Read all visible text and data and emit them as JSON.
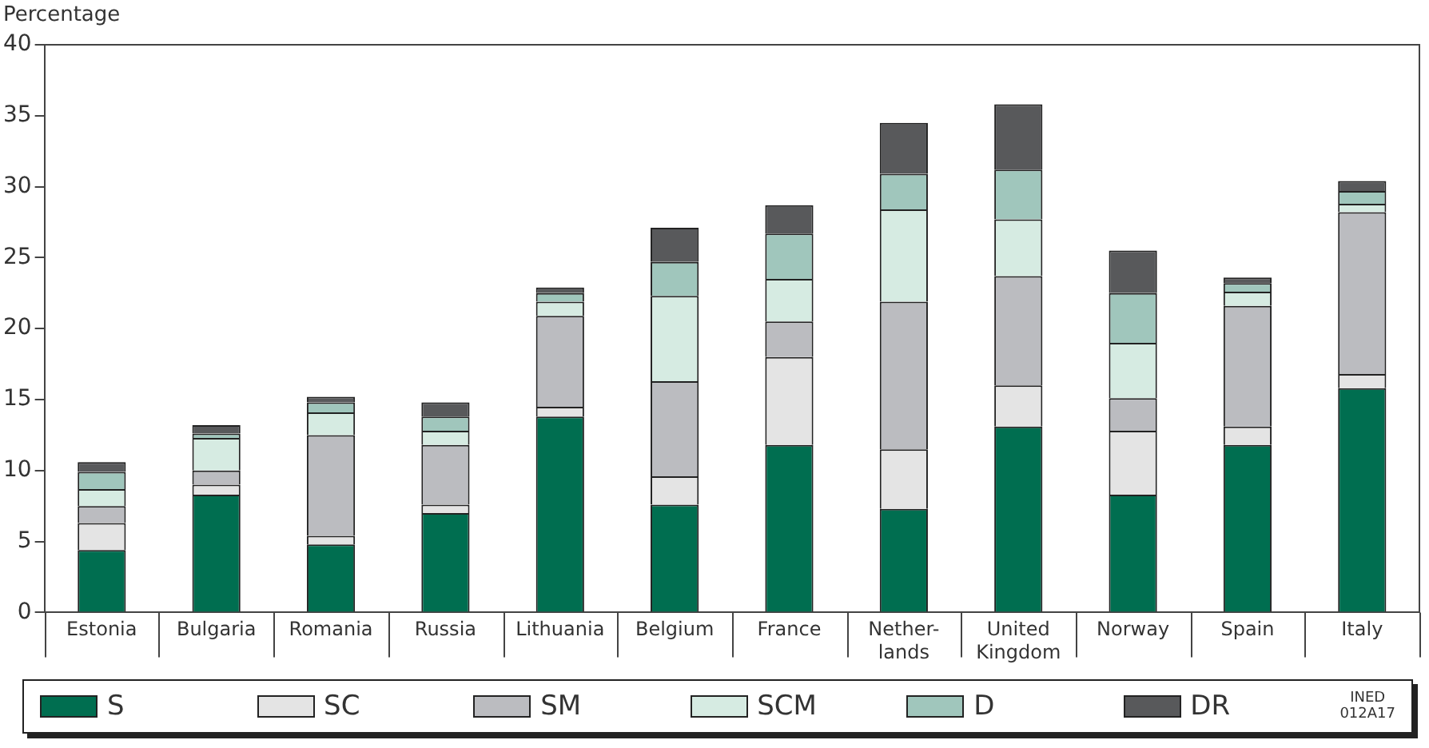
{
  "chart_data": {
    "type": "bar",
    "stacked": true,
    "ylabel": "Percentage",
    "categories": [
      "Estonia",
      "Bulgaria",
      "Romania",
      "Russia",
      "Lithuania",
      "Belgium",
      "France",
      "Nether-\nlands",
      "United\nKingdom",
      "Norway",
      "Spain",
      "Italy"
    ],
    "series": [
      {
        "name": "S",
        "color": "#006e50",
        "values": [
          4.4,
          8.3,
          4.8,
          7.0,
          13.8,
          7.6,
          11.8,
          7.3,
          13.1,
          8.3,
          11.8,
          15.8
        ]
      },
      {
        "name": "SC",
        "color": "#e4e4e4",
        "values": [
          1.9,
          0.7,
          0.6,
          0.6,
          0.7,
          2.0,
          6.2,
          4.2,
          2.9,
          4.5,
          1.3,
          1.0
        ]
      },
      {
        "name": "SM",
        "color": "#bbbcc0",
        "values": [
          1.2,
          1.0,
          7.1,
          4.2,
          6.4,
          6.7,
          2.5,
          10.4,
          7.7,
          2.3,
          8.5,
          11.4
        ]
      },
      {
        "name": "SCM",
        "color": "#d6ebe2",
        "values": [
          1.2,
          2.3,
          1.6,
          1.0,
          1.0,
          6.0,
          3.0,
          6.5,
          4.0,
          3.9,
          1.0,
          0.6
        ]
      },
      {
        "name": "D",
        "color": "#a0c6bc",
        "values": [
          1.2,
          0.3,
          0.7,
          1.0,
          0.6,
          2.4,
          3.2,
          2.5,
          3.5,
          3.5,
          0.6,
          0.9
        ]
      },
      {
        "name": "DR",
        "color": "#58595b",
        "values": [
          0.7,
          0.6,
          0.4,
          1.0,
          0.4,
          2.4,
          2.0,
          3.6,
          4.6,
          3.0,
          0.4,
          0.7
        ]
      }
    ],
    "ylim": [
      0,
      40
    ],
    "yticks": [
      0,
      5,
      10,
      15,
      20,
      25,
      30,
      35,
      40
    ],
    "grid": false,
    "legend": "bottom",
    "annotations": [
      "INED\n012A17"
    ]
  }
}
